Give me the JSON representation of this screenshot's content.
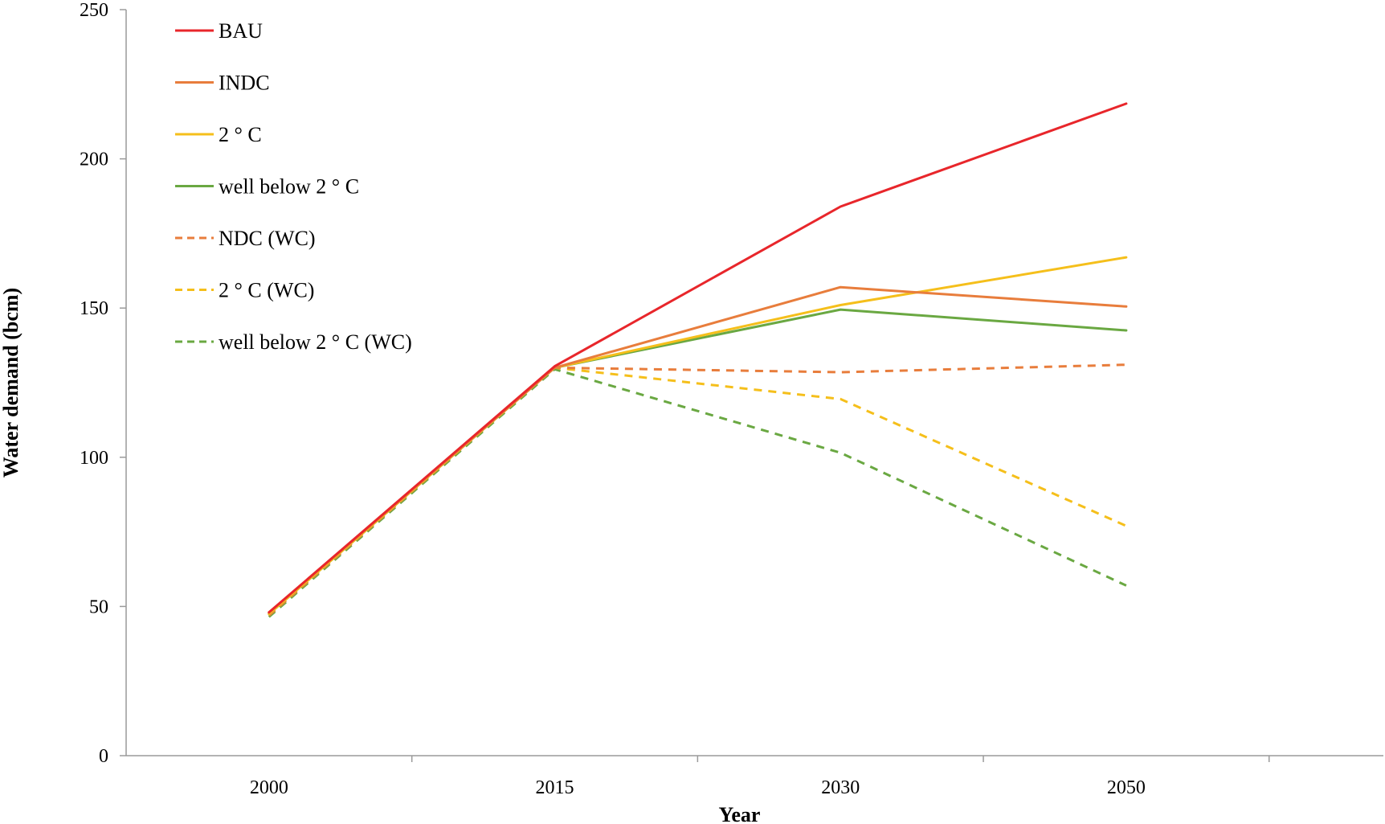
{
  "chart_data": {
    "type": "line",
    "title": "",
    "xlabel": "Year",
    "ylabel": "Water demand (bcm)",
    "categories": [
      "2000",
      "2015",
      "2030",
      "2050"
    ],
    "ylim": [
      0,
      250
    ],
    "yticks": [
      0,
      50,
      100,
      150,
      200,
      250
    ],
    "grid": false,
    "legend_position": "top-left",
    "series": [
      {
        "name": "BAU",
        "color": "#e8262b",
        "dashed": false,
        "values": [
          48,
          130.5,
          184,
          218.5
        ]
      },
      {
        "name": "INDC",
        "color": "#e87d3c",
        "dashed": false,
        "values": [
          48,
          130,
          157,
          150.5
        ]
      },
      {
        "name": "2 ° C",
        "color": "#f5bf1b",
        "dashed": false,
        "values": [
          47.5,
          130,
          151,
          167
        ]
      },
      {
        "name": "well below 2 ° C",
        "color": "#6aa842",
        "dashed": false,
        "values": [
          47.5,
          130,
          149.5,
          142.5
        ]
      },
      {
        "name": "NDC (WC)",
        "color": "#e87d3c",
        "dashed": true,
        "values": [
          47,
          130,
          128.5,
          131
        ]
      },
      {
        "name": "2 ° C (WC)",
        "color": "#f5bf1b",
        "dashed": true,
        "values": [
          47,
          130,
          119.5,
          77
        ]
      },
      {
        "name": "well below 2 ° C (WC)",
        "color": "#6aa842",
        "dashed": true,
        "values": [
          46.5,
          129.5,
          101.5,
          57
        ]
      }
    ]
  }
}
